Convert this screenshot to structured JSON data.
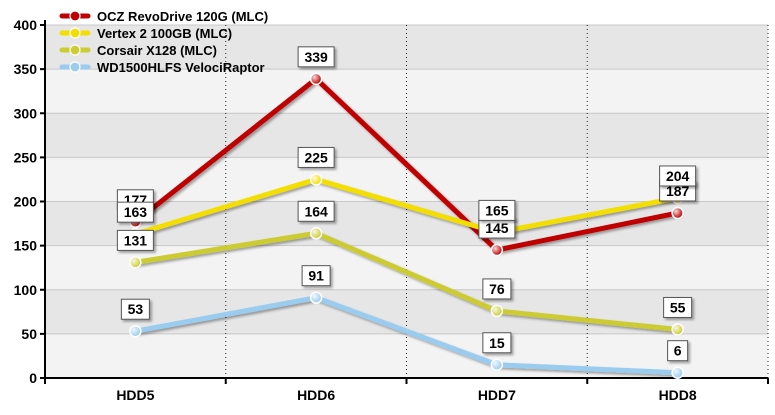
{
  "chart_data": {
    "type": "line",
    "categories": [
      "HDD5",
      "HDD6",
      "HDD7",
      "HDD8"
    ],
    "ylim": [
      0,
      400
    ],
    "yticks": [
      0,
      50,
      100,
      150,
      200,
      250,
      300,
      350,
      400
    ],
    "grid": true,
    "legend_position": "top-left",
    "series": [
      {
        "name": "OCZ RevoDrive 120G (MLC)",
        "color": "#c00000",
        "values": [
          177,
          339,
          145,
          187
        ]
      },
      {
        "name": "Vertex 2 100GB (MLC)",
        "color": "#f2de00",
        "values": [
          163,
          225,
          165,
          204
        ]
      },
      {
        "name": "Corsair X128 (MLC)",
        "color": "#cccc33",
        "values": [
          131,
          164,
          76,
          55
        ]
      },
      {
        "name": "WD1500HLFS VelociRaptor",
        "color": "#99ccee",
        "values": [
          53,
          91,
          15,
          6
        ]
      }
    ]
  }
}
